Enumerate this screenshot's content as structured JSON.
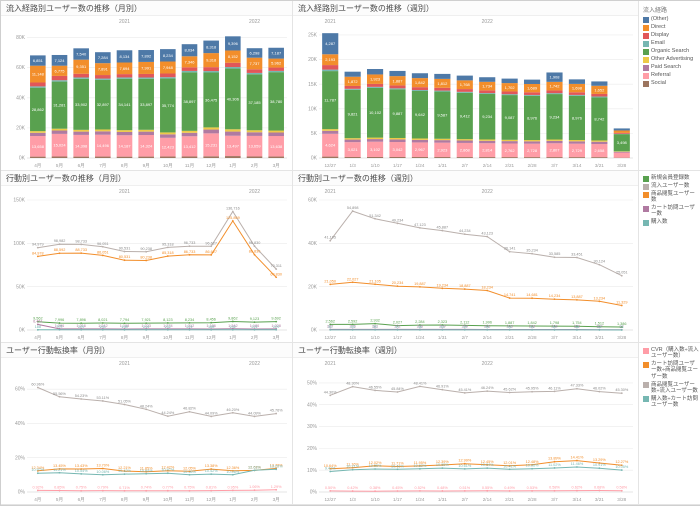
{
  "legends": {
    "channels": {
      "title": "流入経路",
      "items": [
        {
          "label": "(Other)",
          "color": "#4e79a7"
        },
        {
          "label": "Direct",
          "color": "#f28e2b"
        },
        {
          "label": "Display",
          "color": "#e15759"
        },
        {
          "label": "Email",
          "color": "#76b7b2"
        },
        {
          "label": "Organic Search",
          "color": "#59a14f"
        },
        {
          "label": "Other Advertising",
          "color": "#edc948"
        },
        {
          "label": "Paid Search",
          "color": "#b07aa1"
        },
        {
          "label": "Referral",
          "color": "#ff9da7"
        },
        {
          "label": "Social",
          "color": "#9c755f"
        }
      ]
    },
    "behaviors": {
      "title": "",
      "items": [
        {
          "label": "新規会員登録数",
          "color": "#59a14f"
        },
        {
          "label": "流入ユーザー数",
          "color": "#bab0ac"
        },
        {
          "label": "商品閲覧ユーザー数",
          "color": "#f28e2b"
        },
        {
          "label": "カート訪問ユーザー数",
          "color": "#b07aa1"
        },
        {
          "label": "購入数",
          "color": "#76b7b2"
        }
      ]
    },
    "rates": {
      "title": "",
      "items": [
        {
          "label": "CVR（購入数÷流入ユーザー数）",
          "color": "#ff9da7"
        },
        {
          "label": "カート訪問ユーザー数÷商品閲覧ユーザー数",
          "color": "#f28e2b"
        },
        {
          "label": "商品閲覧ユーザー数÷流入ユーザー数",
          "color": "#bab0ac"
        },
        {
          "label": "購入数÷カート訪問ユーザー数",
          "color": "#76b7b2"
        }
      ]
    }
  },
  "chart_data": [
    {
      "type": "bar",
      "stacked": true,
      "title": "流入経路別ユーザー数の推移（月別）",
      "categories": [
        "4月",
        "5月",
        "6月",
        "7月",
        "8月",
        "9月",
        "10月",
        "11月",
        "12月",
        "1月",
        "2月",
        "3月"
      ],
      "year_bands": [
        {
          "label": "2021",
          "from": 0,
          "to": 8
        },
        {
          "label": "2022",
          "from": 9,
          "to": 11
        }
      ],
      "ylim": [
        0,
        85000
      ],
      "yticks": [
        0,
        20000,
        40000,
        60000,
        80000
      ],
      "tick_format": "K",
      "series": [
        {
          "name": "(Other)",
          "color": "#4e79a7",
          "values": [
            6851,
            7124,
            7540,
            7284,
            8134,
            7892,
            8234,
            8034,
            8318,
            9396,
            6298,
            7187
          ]
        },
        {
          "name": "Direct",
          "color": "#f28e2b",
          "values": [
            11148,
            6775,
            9351,
            7891,
            7694,
            7991,
            7948,
            7346,
            9318,
            8152,
            7737,
            5962
          ]
        },
        {
          "name": "Display",
          "color": "#e15759",
          "values": [
            2581,
            2851,
            2452,
            2341,
            2213,
            2342,
            2451,
            2387,
            2612,
            2843,
            2391,
            2218
          ]
        },
        {
          "name": "Email",
          "color": "#76b7b2",
          "values": [
            851,
            921,
            884,
            902,
            867,
            843,
            912,
            887,
            934,
            1021,
            897,
            846
          ]
        },
        {
          "name": "Organic Search",
          "color": "#59a14f",
          "values": [
            28862,
            31281,
            33902,
            32897,
            34141,
            33897,
            35774,
            38897,
            36475,
            40306,
            37185,
            38780
          ]
        },
        {
          "name": "Other Advertising",
          "color": "#edc948",
          "values": [
            1124,
            1215,
            1182,
            1243,
            1198,
            1223,
            1274,
            1312,
            1421,
            1538,
            1324,
            1287
          ]
        },
        {
          "name": "Paid Search",
          "color": "#b07aa1",
          "values": [
            2146,
            2234,
            2187,
            2254,
            2198,
            2243,
            2312,
            2287,
            2534,
            2761,
            2412,
            2321
          ]
        },
        {
          "name": "Referral",
          "color": "#ff9da7",
          "values": [
            13658,
            15024,
            14398,
            14496,
            14187,
            14324,
            12423,
            13412,
            15231,
            13497,
            13659,
            13638
          ]
        },
        {
          "name": "Social",
          "color": "#9c755f",
          "values": [
            921,
            987,
            934,
            956,
            912,
            943,
            978,
            1021,
            1134,
            1286,
            1012,
            968
          ]
        }
      ]
    },
    {
      "type": "bar",
      "stacked": true,
      "title": "流入経路別ユーザー数の推移（週別）",
      "categories": [
        "12/27",
        "1/3",
        "1/10",
        "1/17",
        "1/24",
        "1/31",
        "2/7",
        "2/14",
        "2/21",
        "2/28",
        "3/7",
        "3/14",
        "3/21",
        "3/28"
      ],
      "year_bands": [
        {
          "label": "2021",
          "from": 0,
          "to": 0
        },
        {
          "label": "2022",
          "from": 1,
          "to": 13
        }
      ],
      "ylim": [
        0,
        26000
      ],
      "yticks": [
        0,
        5000,
        10000,
        15000,
        20000,
        25000
      ],
      "tick_format": "K",
      "series": [
        {
          "name": "(Other)",
          "color": "#4e79a7",
          "values": [
            4287,
            1021,
            1102,
            1053,
            987,
            1012,
            968,
            934,
            912,
            887,
            1908,
            923,
            887,
            412
          ]
        },
        {
          "name": "Direct",
          "color": "#f28e2b",
          "values": [
            2193,
            1872,
            1923,
            1887,
            1842,
            1812,
            1768,
            1734,
            1702,
            1689,
            1742,
            1698,
            1652,
            498
          ]
        },
        {
          "name": "Display",
          "color": "#e15759",
          "values": [
            923,
            587,
            602,
            593,
            581,
            572,
            563,
            554,
            547,
            539,
            552,
            541,
            532,
            186
          ]
        },
        {
          "name": "Email",
          "color": "#76b7b2",
          "values": [
            301,
            198,
            204,
            201,
            197,
            193,
            190,
            187,
            184,
            181,
            186,
            182,
            178,
            62
          ]
        },
        {
          "name": "Organic Search",
          "color": "#59a14f",
          "values": [
            11787,
            9821,
            10102,
            9887,
            9642,
            9587,
            9412,
            9234,
            9087,
            8976,
            9234,
            8976,
            8742,
            3498
          ]
        },
        {
          "name": "Other Advertising",
          "color": "#edc948",
          "values": [
            342,
            287,
            295,
            290,
            284,
            279,
            274,
            269,
            265,
            261,
            268,
            262,
            257,
            89
          ]
        },
        {
          "name": "Paid Search",
          "color": "#b07aa1",
          "values": [
            612,
            523,
            538,
            529,
            518,
            509,
            501,
            492,
            484,
            477,
            489,
            479,
            469,
            164
          ]
        },
        {
          "name": "Referral",
          "color": "#ff9da7",
          "values": [
            4624,
            3021,
            3102,
            3042,
            2967,
            2923,
            2868,
            2814,
            2762,
            2728,
            2807,
            2729,
            2658,
            1036
          ]
        },
        {
          "name": "Social",
          "color": "#9c755f",
          "values": [
            287,
            201,
            207,
            203,
            199,
            196,
            192,
            189,
            185,
            183,
            188,
            183,
            179,
            63
          ]
        }
      ]
    },
    {
      "type": "line",
      "title": "行動別ユーザー数の推移（月別）",
      "categories": [
        "4月",
        "5月",
        "6月",
        "7月",
        "8月",
        "9月",
        "10月",
        "11月",
        "12月",
        "1月",
        "2月",
        "3月"
      ],
      "year_bands": [
        {
          "label": "2021",
          "from": 0,
          "to": 8
        },
        {
          "label": "2022",
          "from": 9,
          "to": 11
        }
      ],
      "ylim": [
        0,
        150000
      ],
      "yticks": [
        0,
        50000,
        100000,
        150000
      ],
      "tick_format": "K",
      "label_points": true,
      "series": [
        {
          "name": "流入ユーザー数",
          "color": "#bab0ac",
          "values": [
            94979,
            98982,
            98733,
            96051,
            90531,
            90238,
            95318,
            96733,
            96627,
            136716,
            96830,
            70311
          ]
        },
        {
          "name": "商品閲覧ユーザー数",
          "color": "#f28e2b",
          "values": [
            84978,
            88592,
            88733,
            86051,
            80531,
            80238,
            85318,
            86733,
            86627,
            125869,
            86830,
            60830
          ]
        },
        {
          "name": "新規会員登録数",
          "color": "#59a14f",
          "values": [
            9562,
            7996,
            7896,
            8021,
            7794,
            7921,
            8123,
            8234,
            8456,
            9862,
            9123,
            9692
          ]
        },
        {
          "name": "カート訪問ユーザー数",
          "color": "#b07aa1",
          "values": [
            6451,
            1286,
            1216,
            1242,
            1198,
            1223,
            1274,
            1312,
            1186,
            1342,
            1186,
            1228
          ]
        },
        {
          "name": "購入数",
          "color": "#76b7b2",
          "values": [
            188,
            321,
            229,
            241,
            198,
            214,
            232,
            221,
            188,
            242,
            221,
            229
          ]
        }
      ]
    },
    {
      "type": "line",
      "title": "行動別ユーザー数の推移（週別）",
      "categories": [
        "12/27",
        "1/3",
        "1/10",
        "1/17",
        "1/24",
        "1/31",
        "2/7",
        "2/14",
        "2/21",
        "2/28",
        "3/7",
        "3/14",
        "3/21",
        "3/28"
      ],
      "year_bands": [
        {
          "label": "2021",
          "from": 0,
          "to": 0
        },
        {
          "label": "2022",
          "from": 1,
          "to": 13
        }
      ],
      "ylim": [
        0,
        60000
      ],
      "yticks": [
        0,
        20000,
        40000,
        60000
      ],
      "tick_format": "K",
      "label_points": true,
      "series": [
        {
          "name": "流入ユーザー数",
          "color": "#bab0ac",
          "values": [
            41195,
            54898,
            51342,
            49234,
            47123,
            45887,
            44234,
            43123,
            36141,
            35234,
            33585,
            33451,
            30124,
            25051
          ]
        },
        {
          "name": "商品閲覧ユーザー数",
          "color": "#f28e2b",
          "values": [
            21050,
            22027,
            21105,
            20234,
            19887,
            19234,
            18887,
            18234,
            14741,
            14681,
            14234,
            13887,
            13234,
            11329
          ]
        },
        {
          "name": "新規会員登録数",
          "color": "#59a14f",
          "values": [
            2562,
            2592,
            2932,
            2027,
            2284,
            2323,
            2112,
            1996,
            1887,
            1842,
            1798,
            1754,
            1512,
            1386
          ]
        },
        {
          "name": "カート訪問ユーザー数",
          "color": "#b07aa1",
          "values": [
            287,
            276,
            281,
            272,
            265,
            259,
            254,
            248,
            243,
            239,
            234,
            229,
            152,
            97
          ]
        },
        {
          "name": "購入数",
          "color": "#76b7b2",
          "values": [
            52,
            48,
            50,
            47,
            46,
            45,
            44,
            43,
            42,
            41,
            40,
            38,
            29,
            21
          ]
        }
      ]
    },
    {
      "type": "line",
      "percent": true,
      "title": "ユーザー行動転換率（月別）",
      "categories": [
        "4月",
        "5月",
        "6月",
        "7月",
        "8月",
        "9月",
        "10月",
        "11月",
        "12月",
        "1月",
        "2月",
        "3月"
      ],
      "year_bands": [
        {
          "label": "2021",
          "from": 0,
          "to": 8
        },
        {
          "label": "2022",
          "from": 9,
          "to": 11
        }
      ],
      "ylim": [
        0,
        70
      ],
      "yticks": [
        0,
        20,
        40,
        60
      ],
      "tick_format": "%",
      "label_points": true,
      "series": [
        {
          "name": "商品閲覧ユーザー数÷流入ユーザー数",
          "color": "#bab0ac",
          "values": [
            60.96,
            55.56,
            54.23,
            53.11,
            51.05,
            48.24,
            44.24,
            46.82,
            44.09,
            46.2,
            44.09,
            45.76
          ]
        },
        {
          "name": "カート訪問ユーザー数÷商品閲覧ユーザー数",
          "color": "#f28e2b",
          "values": [
            12.34,
            13.45,
            13.43,
            13.7,
            12.21,
            11.85,
            12.42,
            12.05,
            13.38,
            12.36,
            12.61,
            13.78
          ]
        },
        {
          "name": "購入数÷カート訪問ユーザー数",
          "color": "#76b7b2",
          "values": [
            10.97,
            11.21,
            10.54,
            10.06,
            10.42,
            10.64,
            10.97,
            10.06,
            10.42,
            10.06,
            12.63,
            13.22
          ]
        },
        {
          "name": "CVR（購入数÷流入ユーザー数）",
          "color": "#ff9da7",
          "values": [
            0.92,
            0.85,
            0.75,
            0.79,
            0.71,
            0.74,
            0.77,
            0.75,
            0.81,
            0.95,
            1.06,
            1.29
          ]
        }
      ]
    },
    {
      "type": "line",
      "percent": true,
      "title": "ユーザー行動転換率（週別）",
      "categories": [
        "12/27",
        "1/3",
        "1/10",
        "1/17",
        "1/24",
        "1/31",
        "2/7",
        "2/14",
        "2/21",
        "2/28",
        "3/7",
        "3/14",
        "3/21",
        "3/28"
      ],
      "year_bands": [
        {
          "label": "2021",
          "from": 0,
          "to": 0
        },
        {
          "label": "2022",
          "from": 1,
          "to": 13
        }
      ],
      "ylim": [
        0,
        55
      ],
      "yticks": [
        0,
        10,
        20,
        30,
        40,
        50
      ],
      "tick_format": "%",
      "label_points": true,
      "series": [
        {
          "name": "商品閲覧ユーザー数÷流入ユーザー数",
          "color": "#bab0ac",
          "values": [
            44.3,
            48.3,
            46.55,
            45.84,
            48.41,
            46.91,
            45.41,
            46.24,
            45.62,
            45.95,
            46.11,
            47.33,
            46.02,
            45.3
          ]
        },
        {
          "name": "カート訪問ユーザー数÷商品閲覧ユーザー数",
          "color": "#f28e2b",
          "values": [
            10.64,
            11.16,
            12.02,
            11.71,
            11.95,
            12.39,
            12.99,
            12.45,
            12.01,
            12.48,
            13.89,
            14.41,
            13.29,
            12.27
          ]
        },
        {
          "name": "購入数÷カート訪問ユーザー数",
          "color": "#76b7b2",
          "values": [
            9.41,
            10.21,
            10.55,
            10.41,
            10.62,
            10.95,
            10.61,
            10.94,
            10.41,
            10.66,
            11.02,
            11.46,
            10.91,
            10.05
          ]
        },
        {
          "name": "CVR（購入数÷流入ユーザー数）",
          "color": "#ff9da7",
          "values": [
            0.5,
            0.42,
            0.38,
            0.45,
            0.52,
            0.48,
            0.51,
            0.55,
            0.49,
            0.53,
            0.58,
            0.62,
            0.68,
            0.58
          ]
        }
      ]
    }
  ]
}
